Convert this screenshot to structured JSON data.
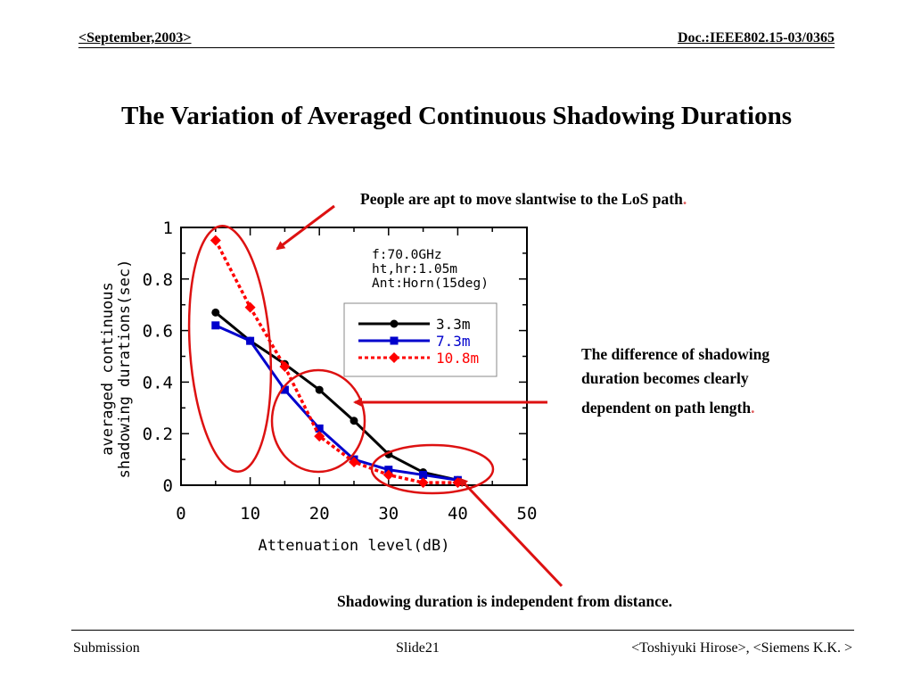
{
  "header": {
    "left": "<September,2003>",
    "right": "Doc.:IEEE802.15-03/0365"
  },
  "title": "The Variation of Averaged Continuous Shadowing Durations",
  "notes": {
    "slantwise": "People are apt to move slantwise to the LoS path",
    "difference_1": "The difference of shadowing",
    "difference_2": "duration becomes clearly",
    "difference_3": "dependent on path length",
    "independent": "Shadowing duration is independent from distance.",
    "period": "."
  },
  "footer": {
    "left": "Submission",
    "center": "Slide21",
    "right": "<Toshiyuki Hirose>, <Siemens K.K. >"
  },
  "colors": {
    "series_3_3": "#000000",
    "series_7_3": "#0000cc",
    "series_10_8": "#ff0000",
    "annotation": "#dd1111"
  },
  "chart_data": {
    "type": "line",
    "xlabel": "Attenuation level(dB)",
    "ylabel_line1": "averaged continuous",
    "ylabel_line2": "shadowing durations(sec)",
    "xlim": [
      0,
      50
    ],
    "ylim": [
      0,
      1
    ],
    "x_ticks": [
      "0",
      "10",
      "20",
      "30",
      "40",
      "50"
    ],
    "y_ticks": [
      "0",
      "0.2",
      "0.4",
      "0.6",
      "0.8",
      "1"
    ],
    "info_lines": [
      "f:70.0GHz",
      "ht,hr:1.05m",
      "Ant:Horn(15deg)"
    ],
    "legend_position": "upper-right",
    "series": [
      {
        "name": "3.3m",
        "marker": "circle",
        "style": "solid",
        "x": [
          5,
          10,
          15,
          20,
          25,
          30,
          35,
          40
        ],
        "y": [
          0.67,
          0.56,
          0.47,
          0.37,
          0.25,
          0.12,
          0.05,
          0.02
        ]
      },
      {
        "name": "7.3m",
        "marker": "square",
        "style": "solid",
        "x": [
          5,
          10,
          15,
          20,
          25,
          30,
          35,
          40
        ],
        "y": [
          0.62,
          0.56,
          0.37,
          0.22,
          0.1,
          0.06,
          0.04,
          0.02
        ]
      },
      {
        "name": "10.8m",
        "marker": "diamond",
        "style": "dotted",
        "x": [
          5,
          10,
          15,
          20,
          25,
          30,
          35,
          40
        ],
        "y": [
          0.95,
          0.69,
          0.46,
          0.19,
          0.09,
          0.04,
          0.01,
          0.01
        ]
      }
    ]
  }
}
